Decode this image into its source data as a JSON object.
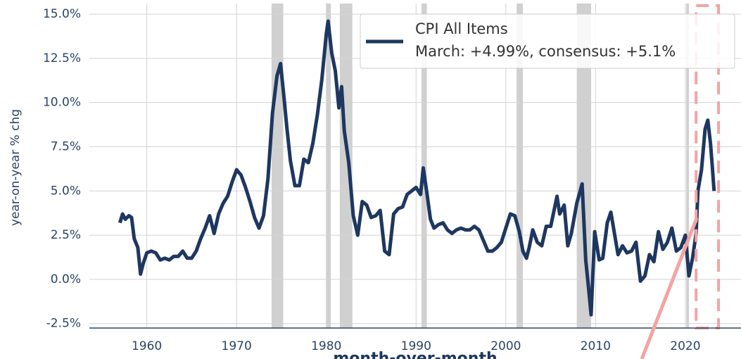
{
  "chart_data": {
    "type": "line",
    "y_label": "year-on-year % chg",
    "bottom_text": "month-over-month",
    "legend_note": "March:  +4.99%, consensus: +5.1%",
    "legend_position": "upper right",
    "grid": true,
    "xlim": [
      1953.6,
      2026.2
    ],
    "ylim": [
      -2.75,
      15.6
    ],
    "xticks": [
      1960,
      1970,
      1980,
      1990,
      2000,
      2010,
      2020
    ],
    "yticks": [
      {
        "value": -2.5,
        "label": "-2.5%"
      },
      {
        "value": 0,
        "label": "0.0%"
      },
      {
        "value": 2.5,
        "label": "2.5%"
      },
      {
        "value": 5,
        "label": "5.0%"
      },
      {
        "value": 7.5,
        "label": "7.5%"
      },
      {
        "value": 10,
        "label": "10.0%"
      },
      {
        "value": 12.5,
        "label": "12.5%"
      },
      {
        "value": 15,
        "label": "15.0%"
      }
    ],
    "shaded_regions": [
      [
        1973.9,
        1975.2
      ],
      [
        1980.0,
        1980.5
      ],
      [
        1981.5,
        1982.9
      ],
      [
        1990.6,
        1991.2
      ],
      [
        2001.2,
        2001.9
      ],
      [
        2007.9,
        2009.5
      ],
      [
        2020.1,
        2020.4
      ]
    ],
    "highlight_region": [
      2021.2,
      2023.7
    ],
    "x": [
      1957.0,
      1957.3,
      1957.6,
      1958.0,
      1958.3,
      1958.6,
      1959.0,
      1959.3,
      1959.6,
      1960.0,
      1960.5,
      1961.0,
      1961.5,
      1962.0,
      1962.5,
      1963.0,
      1963.5,
      1964.0,
      1964.5,
      1965.0,
      1965.5,
      1966.0,
      1966.5,
      1967.0,
      1967.5,
      1968.0,
      1968.5,
      1969.0,
      1969.5,
      1970.0,
      1970.5,
      1971.0,
      1971.5,
      1972.0,
      1972.5,
      1973.0,
      1973.5,
      1974.0,
      1974.5,
      1974.9,
      1975.3,
      1975.6,
      1976.0,
      1976.5,
      1977.0,
      1977.5,
      1978.0,
      1978.5,
      1979.0,
      1979.5,
      1980.0,
      1980.2,
      1980.6,
      1981.0,
      1981.4,
      1981.7,
      1982.0,
      1982.5,
      1983.0,
      1983.5,
      1984.0,
      1984.5,
      1985.0,
      1985.5,
      1986.0,
      1986.5,
      1987.0,
      1987.5,
      1988.0,
      1988.5,
      1989.0,
      1989.5,
      1990.0,
      1990.5,
      1990.8,
      1991.2,
      1991.6,
      1992.0,
      1992.5,
      1993.0,
      1993.5,
      1994.0,
      1994.5,
      1995.0,
      1995.5,
      1996.0,
      1996.5,
      1997.0,
      1997.5,
      1998.0,
      1998.5,
      1999.0,
      1999.5,
      2000.0,
      2000.5,
      2001.0,
      2001.5,
      2001.9,
      2002.3,
      2002.6,
      2003.0,
      2003.5,
      2004.0,
      2004.5,
      2005.0,
      2005.7,
      2006.0,
      2006.5,
      2006.9,
      2007.3,
      2007.9,
      2008.5,
      2008.9,
      2009.2,
      2009.5,
      2009.9,
      2010.4,
      2010.8,
      2011.3,
      2011.7,
      2012.0,
      2012.5,
      2013.0,
      2013.5,
      2014.0,
      2014.5,
      2015.0,
      2015.5,
      2016.0,
      2016.5,
      2017.0,
      2017.5,
      2018.0,
      2018.5,
      2019.0,
      2019.5,
      2020.0,
      2020.4,
      2020.8,
      2021.2,
      2021.4,
      2021.8,
      2022.2,
      2022.5,
      2022.8,
      2023.0,
      2023.2
    ],
    "series": [
      {
        "name": "CPI All Items",
        "color": "#1d3760",
        "values": [
          3.2,
          3.7,
          3.4,
          3.6,
          3.5,
          2.3,
          1.8,
          0.3,
          0.9,
          1.5,
          1.6,
          1.5,
          1.1,
          1.2,
          1.1,
          1.3,
          1.3,
          1.6,
          1.2,
          1.2,
          1.6,
          2.3,
          2.9,
          3.6,
          2.6,
          3.7,
          4.3,
          4.7,
          5.5,
          6.2,
          5.9,
          5.2,
          4.4,
          3.5,
          2.9,
          3.6,
          5.7,
          9.4,
          11.5,
          12.2,
          10.2,
          8.6,
          6.7,
          5.3,
          5.3,
          6.8,
          6.6,
          7.7,
          9.3,
          11.3,
          13.9,
          14.6,
          12.8,
          11.8,
          9.7,
          10.9,
          8.4,
          6.6,
          3.6,
          2.5,
          4.4,
          4.2,
          3.5,
          3.6,
          3.9,
          1.6,
          1.4,
          3.7,
          4.0,
          4.1,
          4.8,
          5.0,
          5.2,
          4.8,
          6.3,
          4.9,
          3.4,
          2.9,
          3.1,
          3.2,
          2.8,
          2.6,
          2.8,
          2.9,
          2.8,
          2.8,
          3.0,
          2.8,
          2.2,
          1.6,
          1.6,
          1.8,
          2.1,
          2.9,
          3.7,
          3.6,
          2.7,
          1.6,
          1.2,
          1.8,
          2.8,
          2.1,
          1.9,
          3.0,
          3.0,
          4.7,
          3.7,
          4.2,
          1.9,
          2.6,
          4.3,
          5.4,
          1.1,
          -0.4,
          -2.0,
          2.7,
          1.1,
          1.2,
          3.2,
          3.8,
          2.9,
          1.4,
          1.9,
          1.5,
          1.6,
          2.1,
          -0.1,
          0.2,
          1.4,
          1.0,
          2.7,
          1.7,
          2.1,
          2.9,
          1.6,
          1.8,
          2.5,
          0.2,
          1.2,
          2.6,
          5.0,
          6.2,
          8.5,
          9.0,
          7.7,
          6.4,
          5.0
        ]
      }
    ]
  }
}
